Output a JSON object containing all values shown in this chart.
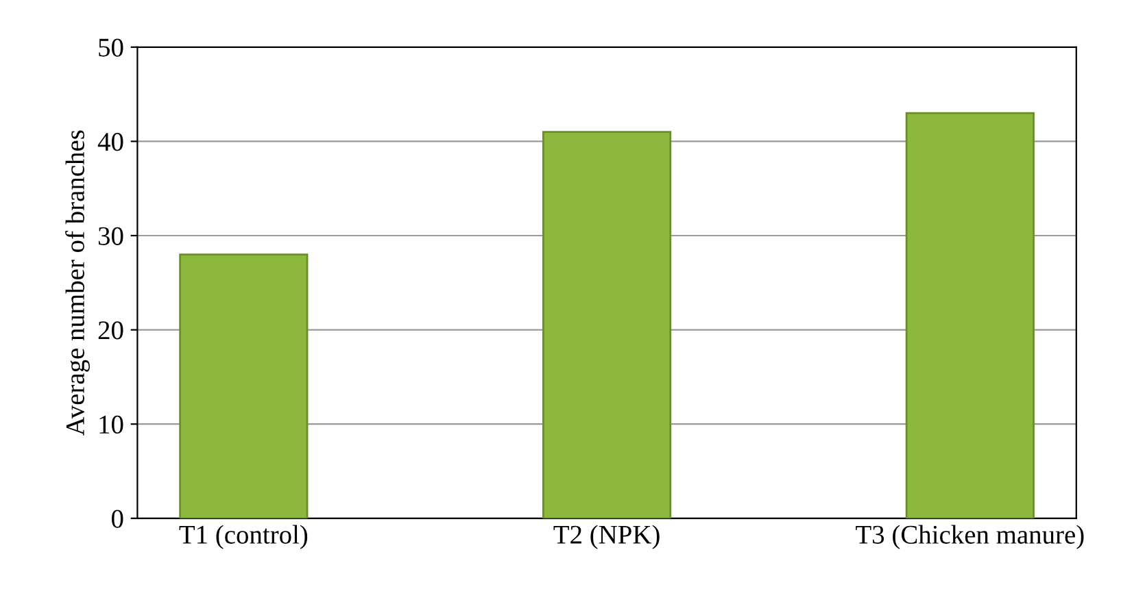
{
  "chart_data": {
    "type": "bar",
    "ylabel": "Average number of branches",
    "categories": [
      "T1 (control)",
      "T2 (NPK)",
      "T3 (Chicken manure)"
    ],
    "values": [
      28,
      41,
      43
    ],
    "color": "#8db83e",
    "ylim": [
      0,
      50
    ],
    "yticks": [
      0,
      10,
      20,
      30,
      40,
      50
    ],
    "grid": "y"
  }
}
